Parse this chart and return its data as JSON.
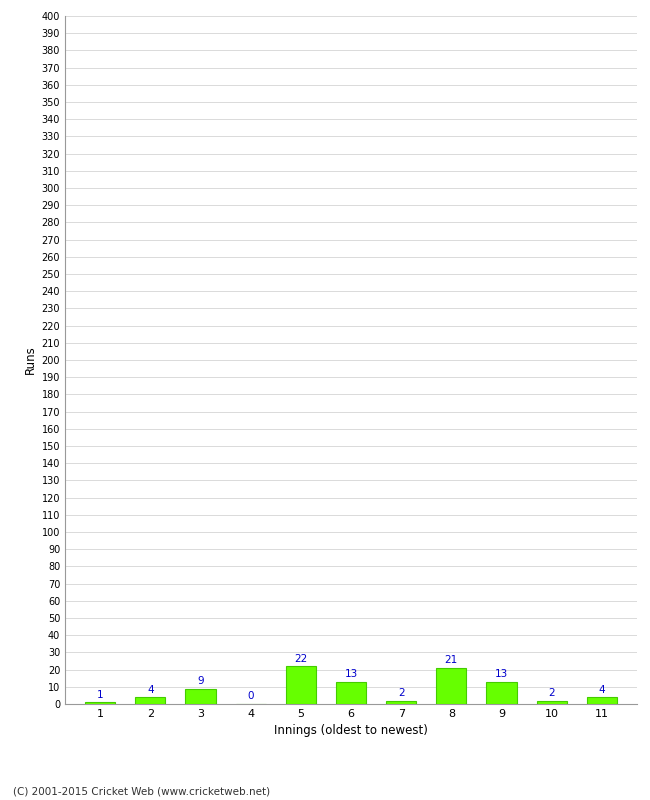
{
  "innings": [
    1,
    2,
    3,
    4,
    5,
    6,
    7,
    8,
    9,
    10,
    11
  ],
  "runs": [
    1,
    4,
    9,
    0,
    22,
    13,
    2,
    21,
    13,
    2,
    4
  ],
  "bar_color": "#66ff00",
  "bar_edge_color": "#44cc00",
  "label_color": "#0000cc",
  "xlabel": "Innings (oldest to newest)",
  "ylabel": "Runs",
  "ylim": [
    0,
    400
  ],
  "background_color": "#ffffff",
  "grid_color": "#cccccc",
  "footer": "(C) 2001-2015 Cricket Web (www.cricketweb.net)"
}
